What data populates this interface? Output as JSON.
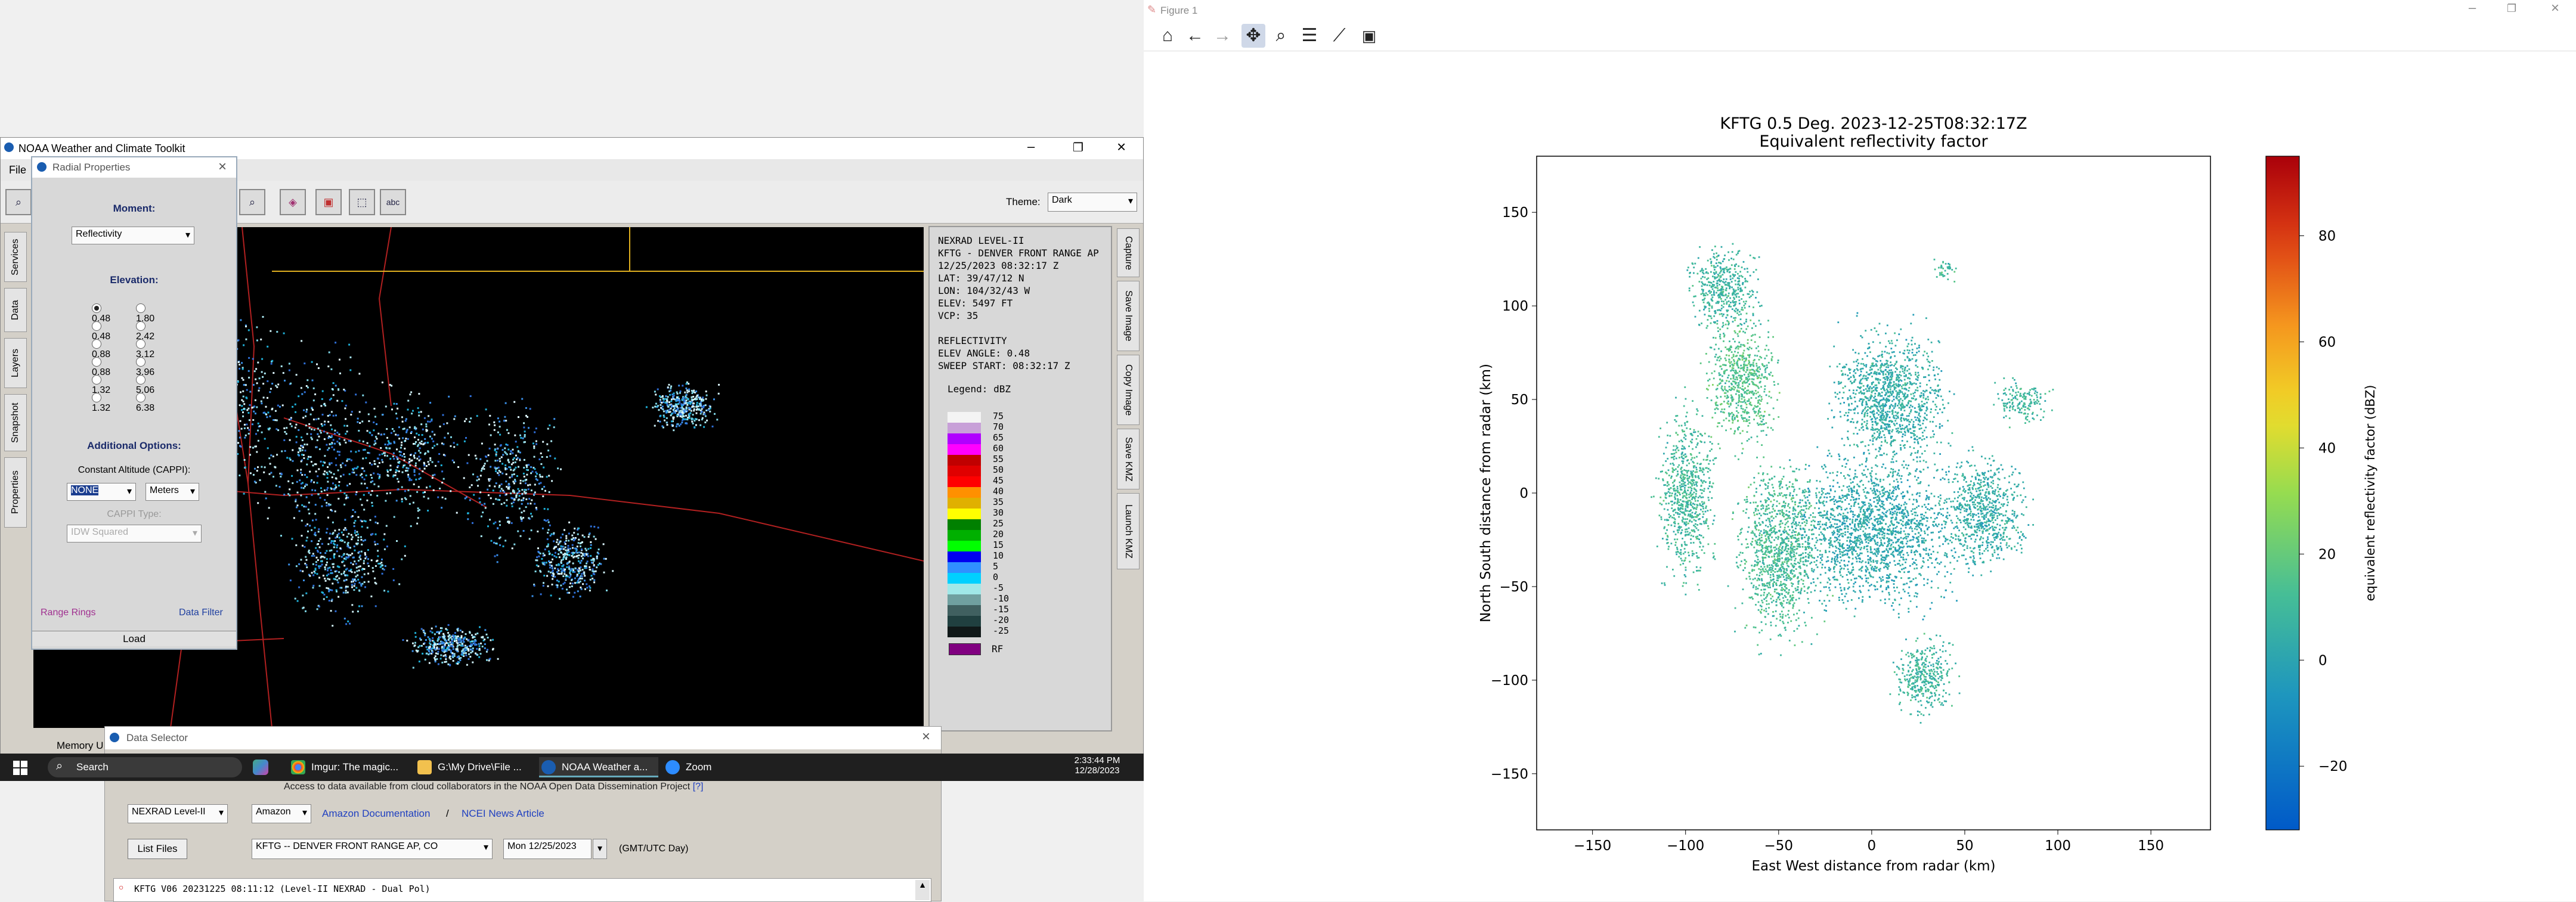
{
  "noaa": {
    "title": "NOAA Weather and Climate Toolkit",
    "menu_file": "File",
    "theme_label": "Theme:",
    "theme_value": "Dark",
    "memory_label": "Memory U",
    "left_tabs": [
      "Services",
      "Data",
      "Layers",
      "Snapshot",
      "Properties"
    ],
    "right_tabs": [
      "Capture",
      "Save Image",
      "Copy Image",
      "Save KMZ",
      "Launch KMZ"
    ],
    "info": {
      "lines": [
        "NEXRAD LEVEL-II",
        "KFTG - DENVER FRONT RANGE AP",
        "12/25/2023 08:32:17 Z",
        "LAT: 39/47/12 N",
        "LON: 104/32/43 W",
        "ELEV: 5497 FT",
        "VCP: 35",
        "",
        "REFLECTIVITY",
        "ELEV ANGLE: 0.48",
        "SWEEP START: 08:32:17 Z"
      ],
      "legend_title": "Legend: dBZ",
      "legend_values": [
        "75",
        "70",
        "65",
        "60",
        "55",
        "50",
        "45",
        "40",
        "35",
        "30",
        "25",
        "20",
        "15",
        "10",
        "5",
        "0",
        "-5",
        "-10",
        "-15",
        "-20",
        "-25"
      ],
      "legend_colors": [
        "#f4f4f4",
        "#c8a0d8",
        "#b000ff",
        "#ff00ff",
        "#c00000",
        "#e00000",
        "#ff0000",
        "#ff9000",
        "#e0b000",
        "#ffff00",
        "#008000",
        "#00b000",
        "#00ff00",
        "#0000f0",
        "#3090ff",
        "#00d0ff",
        "#a0e8e8",
        "#70a0a0",
        "#406060",
        "#204040",
        "#101818"
      ],
      "rf_label": "RF",
      "rf_color": "#800080"
    }
  },
  "radial": {
    "title": "Radial Properties",
    "moment_label": "Moment:",
    "moment_value": "Reflectivity",
    "elevation_label": "Elevation:",
    "elevations": [
      [
        "0.48",
        "1.80"
      ],
      [
        "0.48",
        "2.42"
      ],
      [
        "0.88",
        "3.12"
      ],
      [
        "0.88",
        "3.96"
      ],
      [
        "1.32",
        "5.06"
      ],
      [
        "1.32",
        "6.38"
      ]
    ],
    "additional_label": "Additional Options:",
    "cappi_label": "Constant Altitude (CAPPI):",
    "cappi_value": "NONE",
    "units_value": "Meters",
    "cappi_type_label": "CAPPI Type:",
    "cappi_type_value": "IDW Squared",
    "range_rings": "Range Rings",
    "data_filter": "Data Filter",
    "load": "Load"
  },
  "datasel": {
    "title": "Data Selector",
    "access_text": "Access to data available from cloud collaborators in the NOAA Open Data Dissemination Project",
    "access_link": "[?]",
    "source": "NEXRAD Level-II",
    "provider": "Amazon",
    "amazon_doc": "Amazon Documentation",
    "sep": "/",
    "ncei_news": "NCEI News Article",
    "list_files": "List Files",
    "station": "KFTG -- DENVER FRONT RANGE AP, CO",
    "date": "Mon 12/25/2023",
    "date_note": "(GMT/UTC Day)",
    "file_row": "KFTG V06 20231225 08:11:12 (Level-II NEXRAD - Dual Pol)"
  },
  "taskbar": {
    "search": "Search",
    "apps": [
      "Imgur: The magic...",
      "G:\\My Drive\\File ...",
      "NOAA Weather a...",
      "Zoom"
    ],
    "time": "2:33:44 PM",
    "date": "12/28/2023"
  },
  "figure": {
    "window_title": "Figure 1",
    "tool_icons": [
      "home-icon",
      "back-icon",
      "forward-icon",
      "pan-icon",
      "zoom-icon",
      "configure-icon",
      "axes-edit-icon",
      "save-icon"
    ]
  },
  "chart_data": {
    "type": "scatter",
    "title": "KFTG 0.5 Deg. 2023-12-25T08:32:17Z",
    "subtitle": "Equivalent reflectivity factor",
    "xlabel": "East West distance from radar (km)",
    "ylabel": "North South distance from radar (km)",
    "xlim": [
      -180,
      182
    ],
    "ylim": [
      -180,
      180
    ],
    "xticks": [
      -150,
      -100,
      -50,
      0,
      50,
      100,
      150
    ],
    "yticks": [
      -150,
      -100,
      -50,
      0,
      50,
      100,
      150
    ],
    "colorbar": {
      "label": "equivalent reflectivity factor (dBZ)",
      "range": [
        -32,
        95
      ],
      "ticks": [
        -20,
        0,
        20,
        40,
        60,
        80
      ],
      "colormap": "viridis-like blue-green-yellow-red"
    },
    "clusters": [
      {
        "x": -70,
        "y": 60,
        "rx": 25,
        "ry": 45,
        "dbz": 15
      },
      {
        "x": -50,
        "y": -30,
        "rx": 30,
        "ry": 60,
        "dbz": 12
      },
      {
        "x": 10,
        "y": 50,
        "rx": 40,
        "ry": 50,
        "dbz": 4
      },
      {
        "x": 0,
        "y": -20,
        "rx": 60,
        "ry": 50,
        "dbz": 2
      },
      {
        "x": 80,
        "y": 50,
        "rx": 18,
        "ry": 15,
        "dbz": 8
      },
      {
        "x": 28,
        "y": -98,
        "rx": 22,
        "ry": 28,
        "dbz": 8
      },
      {
        "x": 40,
        "y": 120,
        "rx": 8,
        "ry": 8,
        "dbz": 10
      },
      {
        "x": -80,
        "y": 110,
        "rx": 25,
        "ry": 30,
        "dbz": 8
      },
      {
        "x": -100,
        "y": 0,
        "rx": 20,
        "ry": 60,
        "dbz": 10
      },
      {
        "x": 60,
        "y": -10,
        "rx": 30,
        "ry": 40,
        "dbz": 4
      }
    ]
  }
}
